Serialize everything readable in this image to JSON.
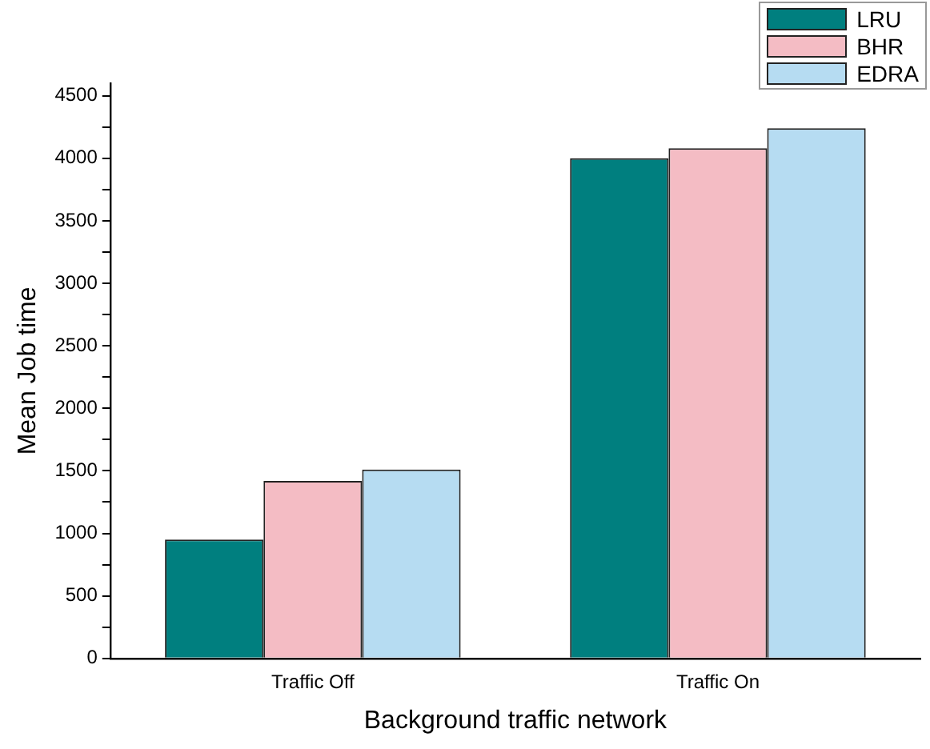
{
  "chart_data": {
    "type": "bar",
    "xlabel": "Background traffic network",
    "ylabel": "Mean Job time",
    "categories": [
      "Traffic Off",
      "Traffic On"
    ],
    "series": [
      {
        "name": "LRU",
        "color": "#007f7f",
        "values": [
          950,
          4000
        ]
      },
      {
        "name": "BHR",
        "color": "#f4bcc4",
        "values": [
          1420,
          4080
        ]
      },
      {
        "name": "EDRA",
        "color": "#b6dcf2",
        "values": [
          1510,
          4240
        ]
      }
    ],
    "ylim": [
      0,
      4600
    ],
    "yticks": [
      0,
      {
        "value": 250,
        "label": null
      },
      500,
      {
        "value": 750,
        "label": null
      },
      1000,
      {
        "value": 1250,
        "label": null
      },
      1500,
      {
        "value": 1750,
        "label": null
      },
      2000,
      {
        "value": 2250,
        "label": null
      },
      2500,
      {
        "value": 2750,
        "label": null
      },
      3000,
      {
        "value": 3250,
        "label": null
      },
      3500,
      {
        "value": 3750,
        "label": null
      },
      4000,
      {
        "value": 4250,
        "label": null
      },
      4500
    ],
    "grid": false,
    "legend": "top right"
  }
}
